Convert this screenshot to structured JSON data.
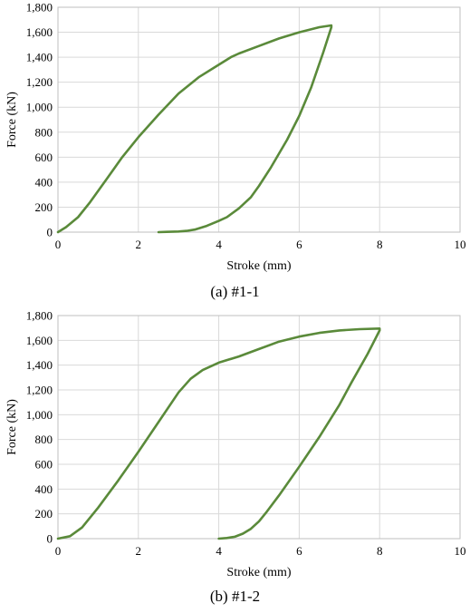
{
  "chart_data": [
    {
      "type": "line",
      "caption": "(a) #1-1",
      "xlabel": "Stroke (mm)",
      "ylabel": "Force (kN)",
      "xlim": [
        0,
        10
      ],
      "ylim": [
        0,
        1800
      ],
      "xticks": [
        "0",
        "2",
        "4",
        "6",
        "8",
        "10"
      ],
      "yticks": [
        "0",
        "200",
        "400",
        "600",
        "800",
        "1,000",
        "1,200",
        "1,400",
        "1,600",
        "1,800"
      ],
      "grid": true,
      "colors": {
        "line": "#5a8a3a"
      },
      "series": [
        {
          "x": [
            0,
            0.2,
            0.5,
            0.8,
            1.2,
            1.6,
            2.0,
            2.5,
            3.0,
            3.5,
            4.0,
            4.3,
            4.5,
            5.0,
            5.5,
            6.0,
            6.5,
            6.8,
            6.8,
            6.6,
            6.3,
            6.0,
            5.7,
            5.3,
            5.0,
            4.8,
            4.5,
            4.2,
            4.0,
            3.7,
            3.4,
            3.2,
            3.0,
            2.7,
            2.5
          ],
          "y": [
            0,
            40,
            120,
            240,
            420,
            600,
            760,
            940,
            1110,
            1240,
            1340,
            1400,
            1430,
            1490,
            1550,
            1600,
            1640,
            1655,
            1640,
            1440,
            1160,
            930,
            740,
            520,
            370,
            280,
            190,
            120,
            90,
            50,
            20,
            10,
            5,
            2,
            0
          ]
        }
      ]
    },
    {
      "type": "line",
      "caption": "(b) #1-2",
      "xlabel": "Stroke (mm)",
      "ylabel": "Force (kN)",
      "xlim": [
        0,
        10
      ],
      "ylim": [
        0,
        1800
      ],
      "xticks": [
        "0",
        "2",
        "4",
        "6",
        "8",
        "10"
      ],
      "yticks": [
        "0",
        "200",
        "400",
        "600",
        "800",
        "1,000",
        "1,200",
        "1,400",
        "1,600",
        "1,800"
      ],
      "grid": true,
      "colors": {
        "line": "#5a8a3a"
      },
      "series": [
        {
          "x": [
            0,
            0.3,
            0.6,
            1.0,
            1.5,
            2.0,
            2.5,
            3.0,
            3.3,
            3.6,
            4.0,
            4.5,
            5.0,
            5.5,
            6.0,
            6.5,
            7.0,
            7.5,
            8.0,
            8.0,
            7.7,
            7.3,
            7.0,
            6.5,
            6.0,
            5.5,
            5.2,
            5.0,
            4.8,
            4.6,
            4.4,
            4.2,
            4.0
          ],
          "y": [
            0,
            20,
            90,
            250,
            470,
            700,
            940,
            1180,
            1290,
            1360,
            1420,
            1470,
            1530,
            1590,
            1630,
            1660,
            1680,
            1690,
            1695,
            1680,
            1490,
            1260,
            1080,
            820,
            580,
            350,
            220,
            140,
            80,
            40,
            15,
            5,
            0
          ]
        }
      ]
    }
  ]
}
